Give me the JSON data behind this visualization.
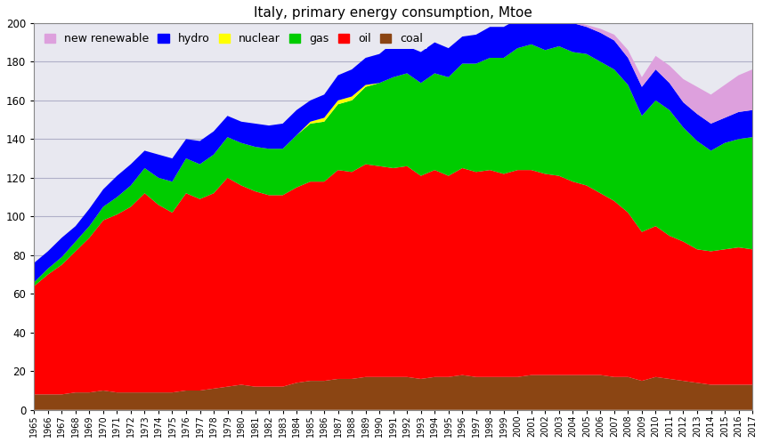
{
  "title": "Italy, primary energy consumption, Mtoe",
  "years": [
    1965,
    1966,
    1967,
    1968,
    1969,
    1970,
    1971,
    1972,
    1973,
    1974,
    1975,
    1976,
    1977,
    1978,
    1979,
    1980,
    1981,
    1982,
    1983,
    1984,
    1985,
    1986,
    1987,
    1988,
    1989,
    1990,
    1991,
    1992,
    1993,
    1994,
    1995,
    1996,
    1997,
    1998,
    1999,
    2000,
    2001,
    2002,
    2003,
    2004,
    2005,
    2006,
    2007,
    2008,
    2009,
    2010,
    2011,
    2012,
    2013,
    2014,
    2015,
    2016,
    2017
  ],
  "coal": [
    8,
    8,
    8,
    9,
    9,
    10,
    9,
    9,
    9,
    9,
    9,
    10,
    10,
    11,
    12,
    13,
    12,
    12,
    12,
    14,
    15,
    15,
    16,
    16,
    17,
    17,
    17,
    17,
    16,
    17,
    17,
    18,
    17,
    17,
    17,
    17,
    18,
    18,
    18,
    18,
    18,
    18,
    17,
    17,
    15,
    17,
    16,
    15,
    14,
    13,
    13,
    13,
    13
  ],
  "oil": [
    56,
    62,
    67,
    73,
    80,
    88,
    92,
    96,
    103,
    97,
    93,
    102,
    99,
    101,
    108,
    103,
    101,
    99,
    99,
    101,
    103,
    103,
    108,
    107,
    110,
    109,
    108,
    109,
    105,
    107,
    104,
    107,
    106,
    107,
    105,
    107,
    106,
    104,
    103,
    100,
    98,
    94,
    91,
    85,
    77,
    78,
    74,
    72,
    69,
    69,
    70,
    71,
    70
  ],
  "gas": [
    2,
    3,
    4,
    5,
    6,
    7,
    9,
    11,
    13,
    14,
    16,
    18,
    18,
    20,
    21,
    22,
    23,
    24,
    24,
    27,
    30,
    31,
    34,
    37,
    40,
    43,
    47,
    48,
    48,
    50,
    51,
    54,
    56,
    58,
    60,
    63,
    65,
    64,
    67,
    67,
    68,
    68,
    68,
    66,
    60,
    65,
    65,
    59,
    56,
    52,
    55,
    56,
    58
  ],
  "nuclear": [
    0,
    0,
    0,
    0,
    0,
    0,
    0,
    0,
    0,
    0,
    0,
    0,
    0,
    0,
    0,
    0,
    0,
    0,
    0,
    0,
    1,
    2,
    2,
    2,
    1,
    0,
    0,
    0,
    0,
    0,
    0,
    0,
    0,
    0,
    0,
    0,
    0,
    0,
    0,
    0,
    0,
    0,
    0,
    0,
    0,
    0,
    0,
    0,
    0,
    0,
    0,
    0,
    0
  ],
  "hydro": [
    10,
    9,
    10,
    8,
    9,
    9,
    11,
    11,
    9,
    12,
    12,
    10,
    12,
    12,
    11,
    11,
    12,
    12,
    13,
    13,
    11,
    12,
    13,
    14,
    14,
    15,
    18,
    14,
    16,
    16,
    15,
    14,
    15,
    16,
    16,
    15,
    16,
    16,
    15,
    15,
    14,
    15,
    15,
    14,
    15,
    16,
    14,
    13,
    14,
    14,
    13,
    14,
    14
  ],
  "new_renewable": [
    0,
    0,
    0,
    0,
    0,
    0,
    0,
    0,
    0,
    0,
    0,
    0,
    0,
    0,
    0,
    0,
    0,
    0,
    0,
    0,
    0,
    0,
    0,
    0,
    0,
    0,
    0,
    0,
    0,
    0,
    0,
    0,
    0,
    0,
    0,
    0,
    0,
    0,
    0,
    1,
    1,
    2,
    3,
    4,
    5,
    7,
    9,
    12,
    14,
    15,
    17,
    19,
    21
  ],
  "color_coal": "#8B4513",
  "color_oil": "#FF0000",
  "color_gas": "#00CC00",
  "color_nuclear": "#FFFF00",
  "color_hydro": "#0000FF",
  "color_new_renewable": "#DDA0DD",
  "bg_color": "#E8E8F0",
  "ylim": [
    0,
    200
  ],
  "yticks": [
    0,
    20,
    40,
    60,
    80,
    100,
    120,
    140,
    160,
    180,
    200
  ],
  "legend_labels": [
    "new renewable",
    "hydro",
    "nuclear",
    "gas",
    "oil",
    "coal"
  ],
  "legend_colors": [
    "#DDA0DD",
    "#0000FF",
    "#FFFF00",
    "#00CC00",
    "#FF0000",
    "#8B4513"
  ]
}
